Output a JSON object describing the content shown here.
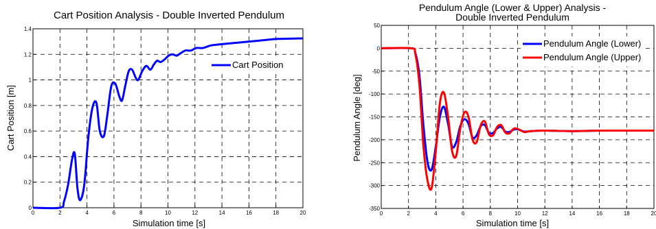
{
  "chart_data": [
    {
      "type": "line",
      "title": "Cart Position Analysis - Double Inverted Pendulum",
      "xlabel": "Simulation time [s]",
      "ylabel": "Cart Position [m]",
      "xlim": [
        0,
        20
      ],
      "ylim": [
        0,
        1.4
      ],
      "xticks": [
        "0",
        "2",
        "4",
        "6",
        "8",
        "10",
        "12",
        "14",
        "16",
        "18",
        "20"
      ],
      "yticks": [
        "0",
        "0.2",
        "0.4",
        "0.6",
        "0.8",
        "1",
        "1.2",
        "1.4"
      ],
      "grid": true,
      "legend_position": "top-right",
      "colors": {
        "Cart Position": "#0000ff"
      },
      "series": [
        {
          "name": "Cart Position",
          "color": "#0000ff",
          "x": [
            0,
            2.0,
            2.3,
            2.6,
            2.9,
            3.1,
            3.3,
            3.5,
            3.8,
            4.1,
            4.4,
            4.7,
            4.95,
            5.25,
            5.5,
            5.8,
            6.1,
            6.4,
            6.6,
            6.85,
            7.1,
            7.35,
            7.6,
            7.8,
            8.1,
            8.4,
            8.7,
            8.95,
            9.2,
            9.45,
            9.75,
            10.05,
            10.35,
            10.65,
            10.95,
            11.3,
            11.7,
            12.1,
            12.6,
            13.2,
            14.0,
            15.0,
            16.0,
            17.0,
            18.0,
            19.0,
            20.0
          ],
          "y": [
            0,
            0,
            0.05,
            0.18,
            0.38,
            0.42,
            0.15,
            0.06,
            0.18,
            0.55,
            0.78,
            0.82,
            0.6,
            0.56,
            0.72,
            0.95,
            0.97,
            0.87,
            0.84,
            0.96,
            1.07,
            1.08,
            1.02,
            1.0,
            1.07,
            1.11,
            1.08,
            1.12,
            1.15,
            1.14,
            1.16,
            1.19,
            1.2,
            1.19,
            1.21,
            1.23,
            1.23,
            1.25,
            1.25,
            1.27,
            1.28,
            1.29,
            1.3,
            1.31,
            1.32,
            1.323,
            1.325
          ]
        }
      ]
    },
    {
      "type": "line",
      "title": "Pendulum Angle (Lower & Upper) Analysis -",
      "title_line2": "Double Inverted Pendulum",
      "xlabel": "Simulation time [s]",
      "ylabel": "Pendulum Angle [deg]",
      "xlim": [
        0,
        20
      ],
      "ylim": [
        -350,
        50
      ],
      "xticks": [
        "0",
        "2",
        "4",
        "6",
        "8",
        "10",
        "12",
        "14",
        "16",
        "18",
        "20"
      ],
      "yticks": [
        "50",
        "0",
        "-50",
        "-100",
        "-150",
        "-200",
        "-250",
        "-300",
        "-350"
      ],
      "grid": true,
      "legend_position": "top-right",
      "colors": {
        "Pendulum Angle (Lower)": "#0000ff",
        "Pendulum Angle (Upper)": "#ff0000"
      },
      "series": [
        {
          "name": "Pendulum Angle (Lower)",
          "color": "#0000ff",
          "x": [
            0,
            2.2,
            2.5,
            2.8,
            3.1,
            3.4,
            3.7,
            4.0,
            4.3,
            4.6,
            4.9,
            5.2,
            5.5,
            5.8,
            6.1,
            6.4,
            6.7,
            7.0,
            7.3,
            7.6,
            7.9,
            8.2,
            8.5,
            8.8,
            9.1,
            9.4,
            9.7,
            10.0,
            10.5,
            11.0,
            12.0,
            14.0,
            16.0,
            18.0,
            20.0
          ],
          "y": [
            0,
            0,
            -10,
            -60,
            -170,
            -250,
            -265,
            -215,
            -150,
            -128,
            -165,
            -215,
            -205,
            -170,
            -155,
            -165,
            -195,
            -190,
            -170,
            -168,
            -185,
            -185,
            -175,
            -172,
            -182,
            -183,
            -178,
            -177,
            -182,
            -181,
            -180,
            -181,
            -180,
            -180,
            -180
          ]
        },
        {
          "name": "Pendulum Angle (Upper)",
          "color": "#ff0000",
          "x": [
            0,
            2.2,
            2.5,
            2.8,
            3.1,
            3.4,
            3.7,
            4.0,
            4.3,
            4.6,
            4.9,
            5.2,
            5.5,
            5.8,
            6.1,
            6.4,
            6.7,
            7.0,
            7.3,
            7.6,
            7.9,
            8.2,
            8.5,
            8.8,
            9.1,
            9.4,
            9.7,
            10.0,
            10.5,
            11.0,
            12.0,
            14.0,
            16.0,
            18.0,
            20.0
          ],
          "y": [
            0,
            0,
            -12,
            -80,
            -215,
            -290,
            -305,
            -225,
            -120,
            -97,
            -150,
            -225,
            -235,
            -175,
            -140,
            -150,
            -200,
            -205,
            -168,
            -160,
            -188,
            -190,
            -172,
            -168,
            -184,
            -186,
            -176,
            -176,
            -183,
            -181,
            -180,
            -181,
            -180,
            -180,
            -180
          ]
        }
      ]
    }
  ]
}
